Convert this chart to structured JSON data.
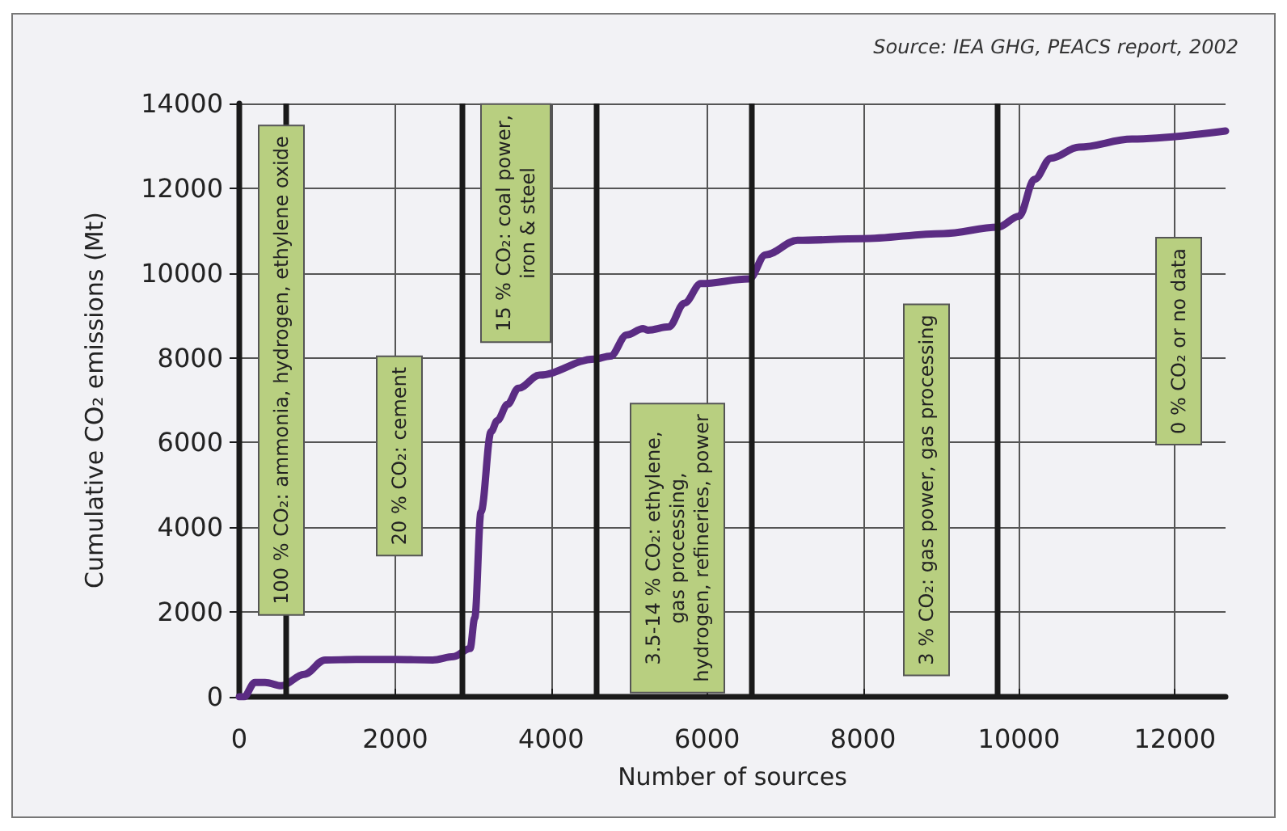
{
  "chart_data": {
    "type": "line",
    "xlabel": "Number of sources",
    "ylabel": "Cumulative CO₂ emissions (Mt)",
    "x": [
      0,
      60,
      200,
      330,
      540,
      830,
      1100,
      1500,
      2000,
      2480,
      2750,
      2960,
      3020,
      3100,
      3230,
      3310,
      3440,
      3580,
      3850,
      4550,
      4760,
      4970,
      5180,
      5240,
      5510,
      5710,
      5920,
      6540,
      6750,
      7160,
      7990,
      9030,
      9730,
      10000,
      10200,
      10410,
      10770,
      11450,
      12650
    ],
    "series": [
      {
        "color": "#5b2c83",
        "values": [
          0,
          0,
          340,
          340,
          260,
          530,
          870,
          880,
          880,
          870,
          950,
          1140,
          1860,
          4360,
          6260,
          6520,
          6900,
          7280,
          7590,
          7970,
          8040,
          8540,
          8690,
          8650,
          8730,
          9290,
          9750,
          9860,
          10430,
          10770,
          10810,
          10930,
          11080,
          11340,
          12210,
          12710,
          12970,
          13160,
          13350
        ]
      }
    ],
    "xlim": [
      0,
      12650
    ],
    "xticks": [
      0,
      2000,
      4000,
      6000,
      8000,
      10000,
      12000
    ],
    "ylim": [
      0,
      14000
    ],
    "yticks": [
      0,
      2000,
      4000,
      6000,
      8000,
      10000,
      12000,
      14000
    ],
    "grid": true,
    "marker": "none",
    "line_style": "solid",
    "ref_lines": [
      {
        "axis": "x",
        "value": 600,
        "color": "#1a1a1a"
      },
      {
        "axis": "x",
        "value": 2860,
        "color": "#1a1a1a"
      },
      {
        "axis": "x",
        "value": 4580,
        "color": "#1a1a1a"
      },
      {
        "axis": "x",
        "value": 6560,
        "color": "#1a1a1a"
      },
      {
        "axis": "x",
        "value": 9730,
        "color": "#1a1a1a"
      }
    ],
    "annotations": [
      "Source: IEA GHG, PEACS report, 2002",
      "100 % CO₂: ammonia, hydrogen, ethylene oxide",
      "20 % CO₂: cement",
      "15 % CO₂: coal power,\niron & steel",
      "3.5-14 % CO₂: ethylene,\ngas processing,\nhydrogen, refineries, power",
      "3 % CO₂: gas power, gas processing",
      "0 % CO₂ or no data"
    ]
  }
}
